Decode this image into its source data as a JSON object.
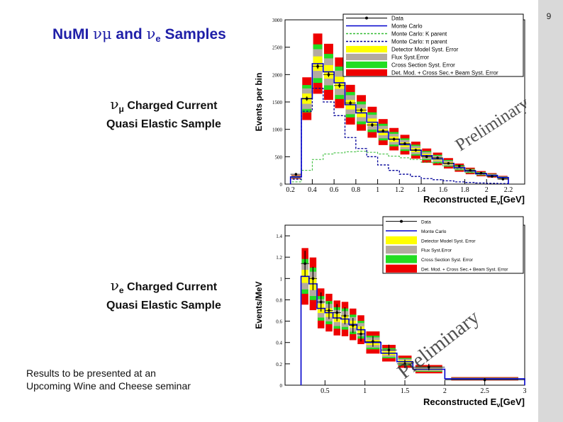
{
  "page_number": "9",
  "title": {
    "pre": "NuMI ",
    "nu1": "ν",
    "mu": "μ",
    "and": " and ",
    "nu2": "ν",
    "e": "e",
    "post": " Samples"
  },
  "labels": {
    "numu": {
      "nu": "ν",
      "sub": "μ",
      "line1": " Charged Current",
      "line2": "Quasi Elastic Sample"
    },
    "nue": {
      "nu": "ν",
      "sub": "e",
      "line1": " Charged Current",
      "line2": "Quasi Elastic Sample"
    }
  },
  "note": {
    "line1": "Results to be presented at an",
    "line2": "Upcoming Wine and Cheese seminar"
  },
  "colors": {
    "accent": "#1f1fa8",
    "mc": "#0000cc",
    "kparent": "#33bb33",
    "piparent": "#000099",
    "det": "#ffff00",
    "flux": "#b4aaa0",
    "xsec": "#22dd22",
    "total": "#ee0000"
  },
  "chart_data": [
    {
      "type": "bar",
      "ylabel": "Events per bin",
      "xlabel_pre": "Reconstructed E",
      "xlabel_sub": "ν",
      "xlabel_post": "[GeV]",
      "watermark": "Preliminary",
      "xlim": [
        0.15,
        2.35
      ],
      "ylim": [
        0,
        3000
      ],
      "xticks": [
        "0.2",
        "0.4",
        "0.6",
        "0.8",
        "1",
        "1.2",
        "1.4",
        "1.6",
        "1.8",
        "2",
        "2.2"
      ],
      "yticks": [
        "0",
        "500",
        "1000",
        "1500",
        "2000",
        "2500",
        "3000"
      ],
      "legend": [
        "Data",
        "Monte Carlo",
        "Monte Carlo: K parent",
        "Monte Carlo: π parent",
        "Detector Model Syst. Error",
        "Flux Syst.Error",
        "Cross Section Syst. Error",
        "Det. Mod. + Cross Sec.+ Beam Syst. Error"
      ],
      "bin_edges": [
        0.2,
        0.3,
        0.4,
        0.5,
        0.6,
        0.7,
        0.8,
        0.9,
        1.0,
        1.1,
        1.2,
        1.3,
        1.4,
        1.5,
        1.6,
        1.7,
        1.8,
        1.9,
        2.0,
        2.1,
        2.2
      ],
      "mc": [
        130,
        1560,
        2200,
        2050,
        1850,
        1450,
        1300,
        1130,
        950,
        820,
        720,
        620,
        520,
        460,
        380,
        300,
        240,
        190,
        160,
        120
      ],
      "data": [
        180,
        1560,
        2150,
        2000,
        1800,
        1480,
        1350,
        1080,
        970,
        820,
        740,
        620,
        500,
        480,
        380,
        330,
        250,
        200,
        140,
        90
      ],
      "k_parent": [
        40,
        250,
        450,
        550,
        570,
        590,
        600,
        580,
        550,
        510,
        480,
        450,
        400,
        380,
        330,
        280,
        220,
        180,
        150,
        110
      ],
      "pi_parent": [
        90,
        1330,
        1750,
        1500,
        1250,
        850,
        650,
        500,
        350,
        250,
        180,
        140,
        100,
        80,
        60,
        40,
        30,
        20,
        15,
        10
      ],
      "syst_frac": {
        "total": 0.25,
        "xsec": 0.16,
        "flux": 0.12,
        "det": 0.06
      }
    },
    {
      "type": "bar",
      "ylabel": "Events/MeV",
      "xlabel_pre": "Reconstructed E",
      "xlabel_sub": "ν",
      "xlabel_post": "[GeV]",
      "watermark": "Preliminary",
      "xlim": [
        0.0,
        3.0
      ],
      "ylim": [
        0,
        1.5
      ],
      "xticks": [
        "0.5",
        "1",
        "1.5",
        "2",
        "2.5",
        "3"
      ],
      "xtick_values": [
        0.5,
        1.0,
        1.5,
        2.0,
        2.5,
        3.0
      ],
      "yticks": [
        "0",
        "0.2",
        "0.4",
        "0.6",
        "0.8",
        "1",
        "1.2",
        "1.4"
      ],
      "legend": [
        "Data",
        "Monte Carlo",
        "Detector Model Syst. Error",
        "Flux Syst.Error",
        "Cross Section Syst. Error",
        "Det. Mod. + Cross Sec.+ Beam Syst. Error"
      ],
      "bin_edges": [
        0.2,
        0.3,
        0.4,
        0.5,
        0.6,
        0.7,
        0.8,
        0.9,
        1.0,
        1.2,
        1.4,
        1.6,
        2.0,
        3.0
      ],
      "mc": [
        1.02,
        0.95,
        0.72,
        0.68,
        0.63,
        0.62,
        0.57,
        0.52,
        0.4,
        0.3,
        0.22,
        0.15,
        0.06
      ],
      "data": [
        1.14,
        1.0,
        0.78,
        0.7,
        0.68,
        0.65,
        0.56,
        0.48,
        0.41,
        0.33,
        0.2,
        0.17,
        0.05
      ],
      "data_err": [
        0.12,
        0.11,
        0.09,
        0.08,
        0.08,
        0.08,
        0.07,
        0.07,
        0.05,
        0.05,
        0.04,
        0.03,
        0.015
      ],
      "syst_frac": {
        "total": 0.26,
        "xsec": 0.16,
        "flux": 0.12,
        "det": 0.06
      }
    }
  ]
}
